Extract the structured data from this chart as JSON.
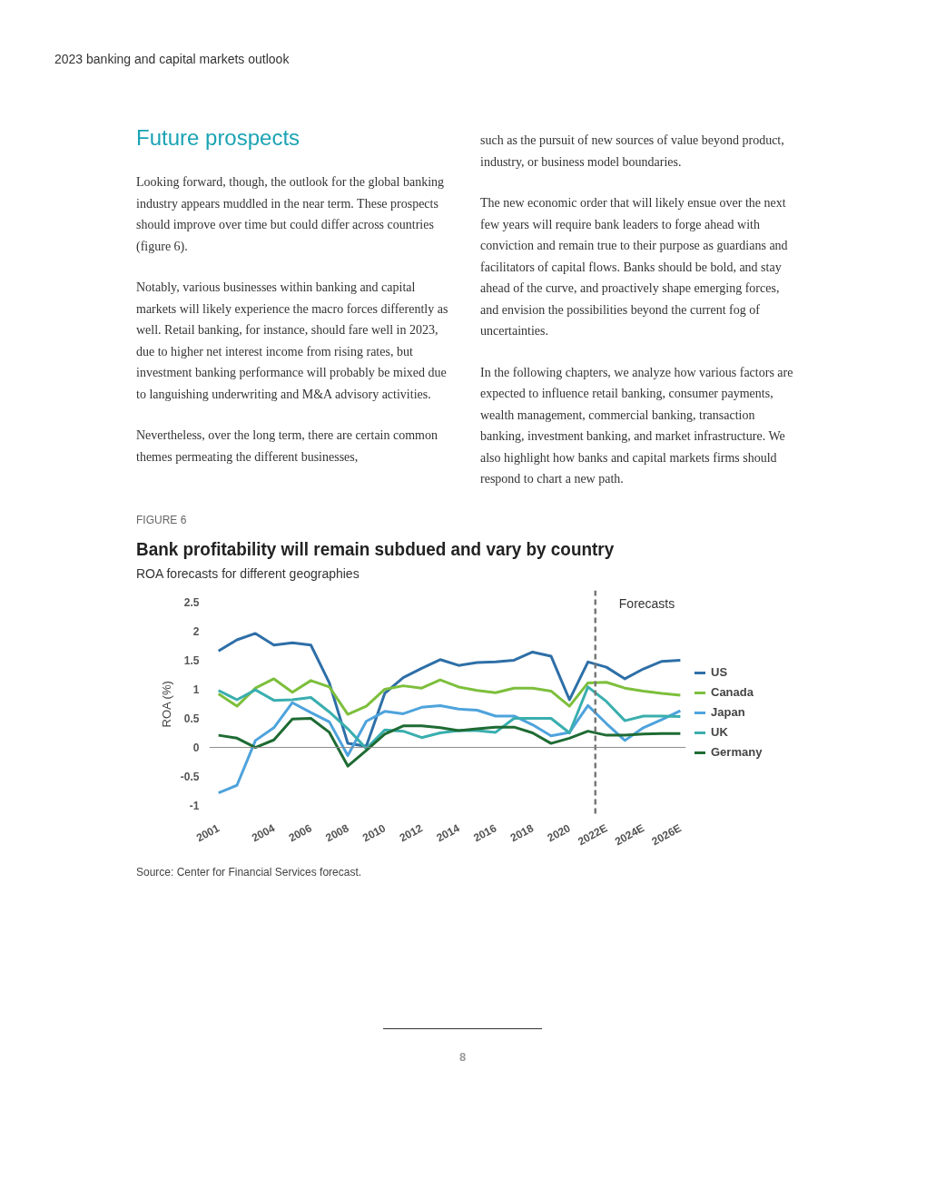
{
  "chart_data": {
    "type": "line",
    "title": "Bank profitability will remain subdued and vary by country",
    "subtitle": "ROA forecasts for different geographies",
    "ylabel": "ROA (%)",
    "x": [
      2001,
      2002,
      2003,
      2004,
      2005,
      2006,
      2007,
      2008,
      2009,
      2010,
      2011,
      2012,
      2013,
      2014,
      2015,
      2016,
      2017,
      2018,
      2019,
      2020,
      2021,
      2022,
      2023,
      2024,
      2025,
      2026
    ],
    "xlim": [
      2000.5,
      2026.3
    ],
    "xticks": [
      2001,
      2004,
      2006,
      2008,
      2010,
      2012,
      2014,
      2016,
      2018,
      2020,
      {
        "value": 2022,
        "label": "2022E"
      },
      {
        "value": 2024,
        "label": "2024E"
      },
      {
        "value": 2026,
        "label": "2026E"
      }
    ],
    "ylim": [
      -1.2,
      2.7
    ],
    "yticks": [
      -1,
      -0.5,
      0,
      0.5,
      1,
      1.5,
      2,
      2.5
    ],
    "grid": false,
    "legend": "right",
    "marker": "none",
    "line_style": "solid",
    "series": [
      {
        "name": "US",
        "color": "#2e6fa7",
        "values": [
          1.66,
          1.85,
          1.96,
          1.76,
          1.8,
          1.76,
          1.11,
          0.07,
          0.02,
          0.93,
          1.2,
          1.36,
          1.51,
          1.41,
          1.46,
          1.47,
          1.5,
          1.64,
          1.57,
          0.82,
          1.47,
          1.38,
          1.18,
          1.35,
          1.48,
          1.5
        ]
      },
      {
        "name": "Canada",
        "color": "#7dbf3c",
        "values": [
          0.92,
          0.71,
          1.02,
          1.18,
          0.95,
          1.15,
          1.04,
          0.57,
          0.71,
          1.0,
          1.06,
          1.02,
          1.16,
          1.04,
          0.98,
          0.94,
          1.02,
          1.02,
          0.97,
          0.71,
          1.11,
          1.12,
          1.02,
          0.97,
          0.93,
          0.9
        ]
      },
      {
        "name": "Japan",
        "color": "#4ea3dc",
        "values": [
          -0.78,
          -0.65,
          0.12,
          0.34,
          0.77,
          0.6,
          0.44,
          -0.14,
          0.45,
          0.62,
          0.58,
          0.69,
          0.72,
          0.66,
          0.64,
          0.54,
          0.54,
          0.39,
          0.2,
          0.26,
          0.72,
          0.41,
          0.12,
          0.34,
          0.48,
          0.63
        ]
      },
      {
        "name": "UK",
        "color": "#3aaeae",
        "values": [
          0.98,
          0.82,
          0.99,
          0.81,
          0.82,
          0.86,
          0.61,
          0.32,
          -0.02,
          0.3,
          0.28,
          0.17,
          0.25,
          0.29,
          0.29,
          0.26,
          0.5,
          0.5,
          0.5,
          0.25,
          1.04,
          0.79,
          0.46,
          0.54,
          0.54,
          0.53
        ]
      },
      {
        "name": "Germany",
        "color": "#1e6b33",
        "values": [
          0.21,
          0.16,
          0,
          0.13,
          0.49,
          0.5,
          0.26,
          -0.32,
          -0.05,
          0.23,
          0.37,
          0.37,
          0.34,
          0.29,
          0.32,
          0.35,
          0.35,
          0.25,
          0.07,
          0.16,
          0.28,
          0.21,
          0.21,
          0.23,
          0.24,
          0.24
        ]
      }
    ],
    "ref_lines": [
      {
        "axis": "x",
        "value": 2021.4,
        "label": "Forecasts",
        "color": "#777777",
        "line_style": "dashed"
      },
      {
        "axis": "y",
        "value": 0,
        "color": "#888888",
        "line_style": "solid"
      }
    ],
    "annotations": [
      "2023 banking and capital markets outlook",
      "Future prospects",
      "Looking forward, though, the outlook for the global banking industry appears muddled in the near term. These prospects should improve over time but could differ across countries (figure 6).",
      "Notably, various businesses within banking and capital markets will likely experience the macro forces differently as well. Retail banking, for instance, should fare well in 2023, due to higher net interest income from rising rates, but investment banking performance will probably be mixed due to languishing underwriting and M&A advisory activities.",
      "Nevertheless, over the long term, there are certain common themes permeating the different businesses,",
      "such as the pursuit of new sources of value beyond product, industry, or business model boundaries.",
      "The new economic order that will likely ensue over the next few years will require bank leaders to forge ahead with conviction and remain true to their purpose as guardians and facilitators of capital flows. Banks should be bold, and stay ahead of the curve, and proactively shape emerging forces, and envision the possibilities beyond the current fog of uncertainties.",
      "In the following chapters, we analyze how various factors are expected to influence retail banking, consumer payments, wealth management, commercial banking, transaction banking, investment banking, and market infrastructure. We also highlight how banks and capital markets firms should respond to chart a new path.",
      "FIGURE 6",
      "Source: Center for Financial Services forecast.",
      "8"
    ]
  }
}
